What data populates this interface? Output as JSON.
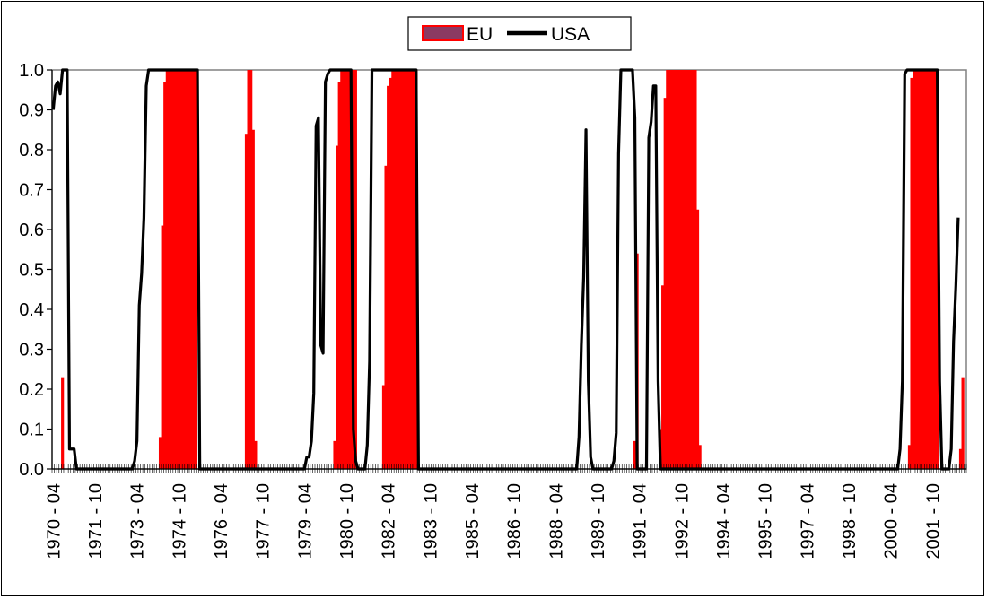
{
  "chart_data": {
    "type": "bar+line",
    "title": "",
    "xlabel": "",
    "ylabel": "",
    "ylim": [
      0,
      1
    ],
    "yticks": [
      "0.0",
      "0.1",
      "0.2",
      "0.3",
      "0.4",
      "0.5",
      "0.6",
      "0.7",
      "0.8",
      "0.9",
      "1.0"
    ],
    "xticks": [
      "1970 - 04",
      "1971 - 10",
      "1973 - 04",
      "1974 - 10",
      "1976 - 04",
      "1977 - 10",
      "1979 - 04",
      "1980 - 10",
      "1982 - 04",
      "1983 - 10",
      "1985 - 04",
      "1986 - 10",
      "1988 - 04",
      "1989 - 10",
      "1991 - 04",
      "1992 - 10",
      "1994 - 04",
      "1995 - 10",
      "1997 - 04",
      "1998 - 10",
      "2000 - 04",
      "2001 - 10"
    ],
    "x_range": [
      "1970 - 04",
      "2002 - 12"
    ],
    "frequency": "monthly",
    "legend": {
      "position": "top-center",
      "entries": [
        "EU",
        "USA"
      ]
    },
    "colors": {
      "EU": "#ff0000",
      "EU_legend": "#8b3a62",
      "USA": "#000000",
      "plot_border": "#808080"
    },
    "series": [
      {
        "name": "EU",
        "style": "bar",
        "points": [
          [
            "1970 - 08",
            0.23
          ],
          [
            "1970 - 09",
            0.0
          ],
          [
            "1974 - 02",
            0.08
          ],
          [
            "1974 - 03",
            0.61
          ],
          [
            "1974 - 04",
            0.97
          ],
          [
            "1974 - 05",
            1.0
          ],
          [
            "1974 - 06",
            1.0
          ],
          [
            "1974 - 07",
            1.0
          ],
          [
            "1974 - 08",
            1.0
          ],
          [
            "1974 - 09",
            1.0
          ],
          [
            "1974 - 10",
            1.0
          ],
          [
            "1974 - 11",
            1.0
          ],
          [
            "1974 - 12",
            1.0
          ],
          [
            "1975 - 01",
            1.0
          ],
          [
            "1975 - 02",
            1.0
          ],
          [
            "1975 - 03",
            1.0
          ],
          [
            "1975 - 04",
            1.0
          ],
          [
            "1975 - 05",
            1.0
          ],
          [
            "1975 - 06",
            0.0
          ],
          [
            "1977 - 03",
            0.84
          ],
          [
            "1977 - 04",
            1.0
          ],
          [
            "1977 - 05",
            1.0
          ],
          [
            "1977 - 06",
            0.85
          ],
          [
            "1977 - 07",
            0.07
          ],
          [
            "1977 - 08",
            0.0
          ],
          [
            "1980 - 05",
            0.07
          ],
          [
            "1980 - 06",
            0.81
          ],
          [
            "1980 - 07",
            0.97
          ],
          [
            "1980 - 08",
            1.0
          ],
          [
            "1980 - 09",
            1.0
          ],
          [
            "1980 - 10",
            1.0
          ],
          [
            "1980 - 11",
            1.0
          ],
          [
            "1980 - 12",
            1.0
          ],
          [
            "1981 - 01",
            1.0
          ],
          [
            "1981 - 02",
            1.0
          ],
          [
            "1981 - 03",
            0.0
          ],
          [
            "1982 - 02",
            0.21
          ],
          [
            "1982 - 03",
            0.76
          ],
          [
            "1982 - 04",
            0.96
          ],
          [
            "1982 - 05",
            0.98
          ],
          [
            "1982 - 06",
            1.0
          ],
          [
            "1982 - 07",
            1.0
          ],
          [
            "1982 - 08",
            1.0
          ],
          [
            "1982 - 09",
            1.0
          ],
          [
            "1982 - 10",
            1.0
          ],
          [
            "1982 - 11",
            1.0
          ],
          [
            "1982 - 12",
            1.0
          ],
          [
            "1983 - 01",
            1.0
          ],
          [
            "1983 - 02",
            1.0
          ],
          [
            "1983 - 03",
            1.0
          ],
          [
            "1983 - 04",
            1.0
          ],
          [
            "1983 - 05",
            0.0
          ],
          [
            "1991 - 02",
            0.07
          ],
          [
            "1991 - 03",
            0.54
          ],
          [
            "1991 - 04",
            0.0
          ],
          [
            "1992 - 01",
            0.1
          ],
          [
            "1992 - 02",
            0.46
          ],
          [
            "1992 - 03",
            0.93
          ],
          [
            "1992 - 04",
            1.0
          ],
          [
            "1992 - 05",
            1.0
          ],
          [
            "1992 - 06",
            1.0
          ],
          [
            "1992 - 07",
            1.0
          ],
          [
            "1992 - 08",
            1.0
          ],
          [
            "1992 - 09",
            1.0
          ],
          [
            "1992 - 10",
            1.0
          ],
          [
            "1992 - 11",
            1.0
          ],
          [
            "1992 - 12",
            1.0
          ],
          [
            "1993 - 01",
            1.0
          ],
          [
            "1993 - 02",
            1.0
          ],
          [
            "1993 - 03",
            1.0
          ],
          [
            "1993 - 04",
            1.0
          ],
          [
            "1993 - 05",
            0.65
          ],
          [
            "1993 - 06",
            0.06
          ],
          [
            "1993 - 07",
            0.0
          ],
          [
            "2000 - 12",
            0.06
          ],
          [
            "2001 - 01",
            0.98
          ],
          [
            "2001 - 02",
            1.0
          ],
          [
            "2001 - 03",
            1.0
          ],
          [
            "2001 - 04",
            1.0
          ],
          [
            "2001 - 05",
            1.0
          ],
          [
            "2001 - 06",
            1.0
          ],
          [
            "2001 - 07",
            1.0
          ],
          [
            "2001 - 08",
            1.0
          ],
          [
            "2001 - 09",
            1.0
          ],
          [
            "2001 - 10",
            1.0
          ],
          [
            "2001 - 11",
            1.0
          ],
          [
            "2001 - 12",
            1.0
          ],
          [
            "2002 - 01",
            0.0
          ],
          [
            "2002 - 10",
            0.05
          ],
          [
            "2002 - 11",
            0.23
          ],
          [
            "2002 - 12",
            0.0
          ]
        ]
      },
      {
        "name": "USA",
        "style": "line",
        "points": [
          [
            "1970 - 04",
            0.9
          ],
          [
            "1970 - 05",
            0.96
          ],
          [
            "1970 - 06",
            0.97
          ],
          [
            "1970 - 07",
            0.94
          ],
          [
            "1970 - 08",
            1.0
          ],
          [
            "1970 - 09",
            1.0
          ],
          [
            "1970 - 10",
            1.0
          ],
          [
            "1970 - 11",
            0.05
          ],
          [
            "1970 - 12",
            0.05
          ],
          [
            "1971 - 01",
            0.05
          ],
          [
            "1971 - 02",
            0.0
          ],
          [
            "1973 - 02",
            0.0
          ],
          [
            "1973 - 03",
            0.02
          ],
          [
            "1973 - 04",
            0.07
          ],
          [
            "1973 - 05",
            0.41
          ],
          [
            "1973 - 06",
            0.49
          ],
          [
            "1973 - 07",
            0.63
          ],
          [
            "1973 - 08",
            0.96
          ],
          [
            "1973 - 09",
            1.0
          ],
          [
            "1973 - 10",
            1.0
          ],
          [
            "1975 - 06",
            1.0
          ],
          [
            "1975 - 07",
            0.0
          ],
          [
            "1979 - 04",
            0.0
          ],
          [
            "1979 - 05",
            0.03
          ],
          [
            "1979 - 06",
            0.03
          ],
          [
            "1979 - 07",
            0.07
          ],
          [
            "1979 - 08",
            0.19
          ],
          [
            "1979 - 09",
            0.86
          ],
          [
            "1979 - 10",
            0.88
          ],
          [
            "1979 - 11",
            0.31
          ],
          [
            "1979 - 12",
            0.29
          ],
          [
            "1980 - 01",
            0.97
          ],
          [
            "1980 - 02",
            0.99
          ],
          [
            "1980 - 03",
            1.0
          ],
          [
            "1980 - 12",
            1.0
          ],
          [
            "1981 - 01",
            0.1
          ],
          [
            "1981 - 02",
            0.02
          ],
          [
            "1981 - 03",
            0.0
          ],
          [
            "1981 - 06",
            0.0
          ],
          [
            "1981 - 07",
            0.06
          ],
          [
            "1981 - 08",
            0.27
          ],
          [
            "1981 - 09",
            1.0
          ],
          [
            "1983 - 04",
            1.0
          ],
          [
            "1983 - 05",
            0.0
          ],
          [
            "1989 - 01",
            0.0
          ],
          [
            "1989 - 02",
            0.08
          ],
          [
            "1989 - 03",
            0.31
          ],
          [
            "1989 - 04",
            0.48
          ],
          [
            "1989 - 05",
            0.85
          ],
          [
            "1989 - 06",
            0.22
          ],
          [
            "1989 - 07",
            0.03
          ],
          [
            "1989 - 08",
            0.0
          ],
          [
            "1990 - 04",
            0.0
          ],
          [
            "1990 - 05",
            0.02
          ],
          [
            "1990 - 06",
            0.09
          ],
          [
            "1990 - 07",
            0.79
          ],
          [
            "1990 - 08",
            1.0
          ],
          [
            "1991 - 01",
            1.0
          ],
          [
            "1991 - 02",
            0.88
          ],
          [
            "1991 - 03",
            0.0
          ],
          [
            "1991 - 07",
            0.0
          ],
          [
            "1991 - 08",
            0.83
          ],
          [
            "1991 - 09",
            0.87
          ],
          [
            "1991 - 10",
            0.96
          ],
          [
            "1991 - 11",
            0.96
          ],
          [
            "1991 - 12",
            0.22
          ],
          [
            "1992 - 01",
            0.0
          ],
          [
            "2000 - 07",
            0.0
          ],
          [
            "2000 - 08",
            0.05
          ],
          [
            "2000 - 09",
            0.22
          ],
          [
            "2000 - 10",
            0.99
          ],
          [
            "2000 - 11",
            1.0
          ],
          [
            "2001 - 12",
            1.0
          ],
          [
            "2002 - 01",
            0.22
          ],
          [
            "2002 - 02",
            0.0
          ],
          [
            "2002 - 05",
            0.0
          ],
          [
            "2002 - 06",
            0.05
          ],
          [
            "2002 - 07",
            0.32
          ],
          [
            "2002 - 08",
            0.46
          ],
          [
            "2002 - 09",
            0.63
          ]
        ]
      }
    ]
  }
}
